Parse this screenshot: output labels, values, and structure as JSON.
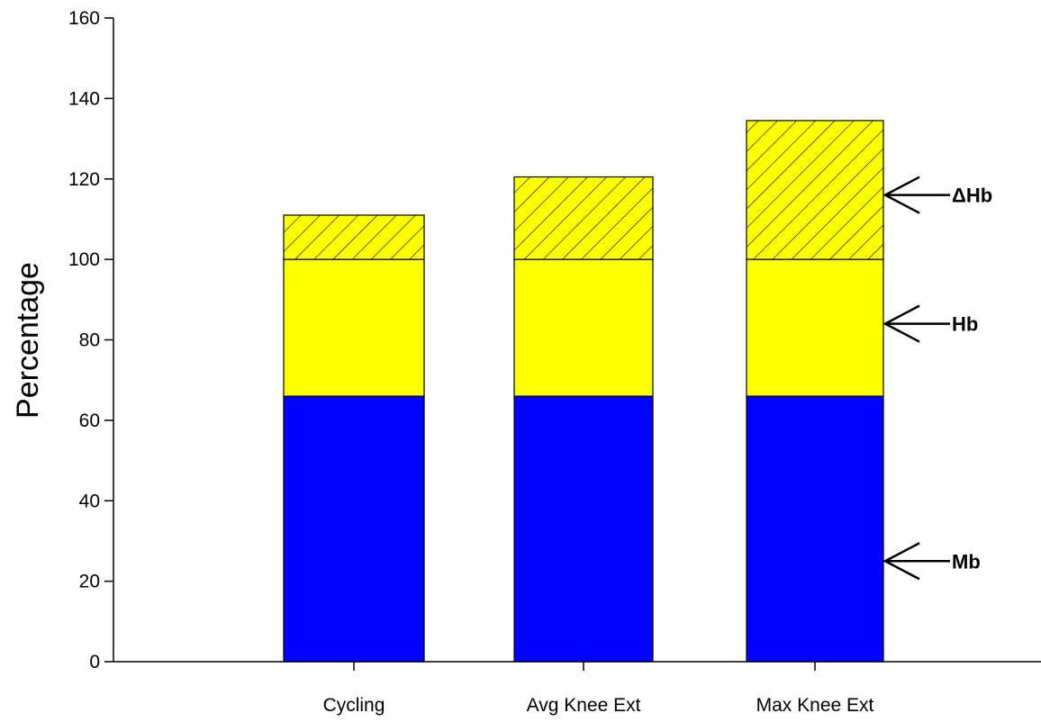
{
  "chart_data": {
    "type": "bar",
    "stacked": true,
    "title": "",
    "xlabel": "",
    "ylabel": "Percentage",
    "ylim": [
      0,
      160
    ],
    "yticks": [
      0,
      20,
      40,
      60,
      80,
      100,
      120,
      140,
      160
    ],
    "categories": [
      "Cycling",
      "Avg Knee Ext",
      "Max Knee Ext"
    ],
    "series": [
      {
        "name": "Mb",
        "color": "#0000FF",
        "pattern": "solid",
        "values": [
          66,
          66,
          66
        ]
      },
      {
        "name": "Hb",
        "color": "#FFFF00",
        "pattern": "solid",
        "values": [
          34,
          34,
          34
        ]
      },
      {
        "name": "ΔHb",
        "color": "#FFFF00",
        "pattern": "diagonal-hatch",
        "values": [
          11,
          20.5,
          34.5
        ]
      }
    ],
    "annotations": [
      {
        "label": "ΔHb",
        "points_to": "ΔHb segment of Max Knee Ext",
        "value": 116
      },
      {
        "label": "Hb",
        "points_to": "Hb segment of Max Knee Ext",
        "value": 84
      },
      {
        "label": "Mb",
        "points_to": "Mb segment of Max Knee Ext",
        "value": 25
      }
    ],
    "grid": false,
    "legend": "none"
  }
}
